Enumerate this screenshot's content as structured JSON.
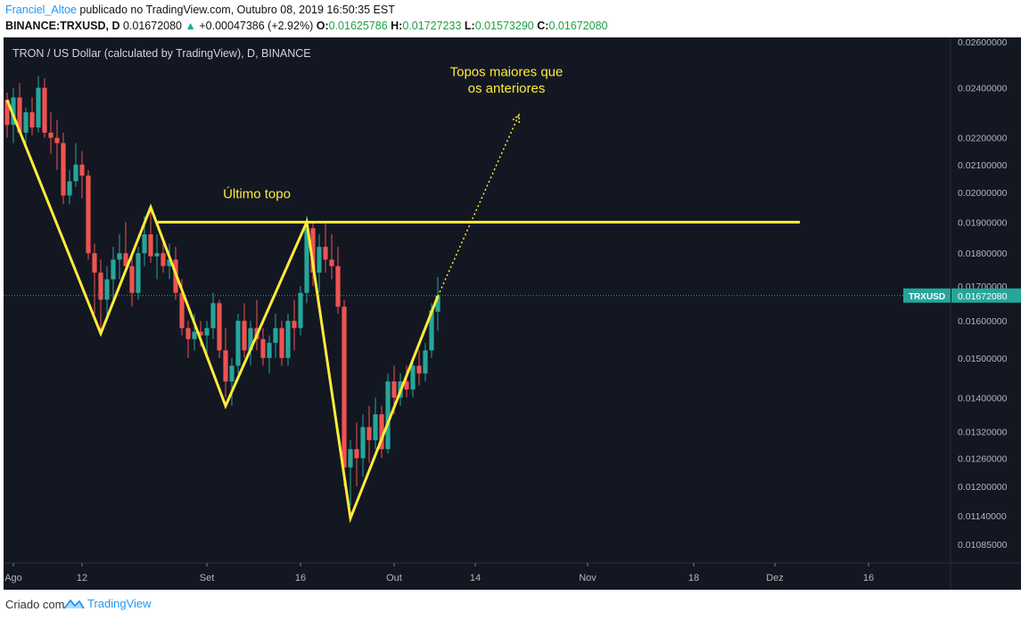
{
  "header": {
    "author": "Franciel_Altoe",
    "published_text": "publicado no TradingView.com, Outubro 08, 2019 16:50:35 EST",
    "symbol": "BINANCE:TRXUSD, D",
    "last": "0.01672080",
    "change_arrow": "▲",
    "change": "+0.00047386 (+2.92%)",
    "o_label": "O:",
    "o_value": "0.01625786",
    "h_label": "H:",
    "h_value": "0.01727233",
    "l_label": "L:",
    "l_value": "0.01573290",
    "c_label": "C:",
    "c_value": "0.01672080"
  },
  "footer": {
    "created_with": "Criado com",
    "brand": "TradingView",
    "logo_icon": "tradingview-logo-icon"
  },
  "colors": {
    "background": "#131722",
    "up": "#26a69a",
    "down": "#ef5350",
    "annotation": "#ffeb3b",
    "price_tag": "#26a69a"
  },
  "chart_data": {
    "type": "candlestick",
    "title": "TRON / US Dollar (calculated by TradingView), D, BINANCE",
    "yscale": "log",
    "ylim": [
      0.0105,
      0.0262
    ],
    "y_ticks": [
      "0.02600000",
      "0.02400000",
      "0.02200000",
      "0.02100000",
      "0.02000000",
      "0.01900000",
      "0.01800000",
      "0.01700000",
      "0.01600000",
      "0.01500000",
      "0.01400000",
      "0.01320000",
      "0.01260000",
      "0.01200000",
      "0.01140000",
      "0.01085000"
    ],
    "x_ticks": [
      {
        "label": "Ago",
        "date": "2019-08-01"
      },
      {
        "label": "12",
        "date": "2019-08-12"
      },
      {
        "label": "Set",
        "date": "2019-09-01"
      },
      {
        "label": "16",
        "date": "2019-09-16"
      },
      {
        "label": "Out",
        "date": "2019-10-01"
      },
      {
        "label": "14",
        "date": "2019-10-14"
      },
      {
        "label": "Nov",
        "date": "2019-11-01"
      },
      {
        "label": "18",
        "date": "2019-11-18"
      },
      {
        "label": "Dez",
        "date": "2019-12-01"
      },
      {
        "label": "16",
        "date": "2019-12-16"
      }
    ],
    "current_price": {
      "symbol": "TRXUSD",
      "value": "0.01672080"
    },
    "annotations": {
      "zigzag": [
        {
          "date": "2019-07-31",
          "price": 0.0235
        },
        {
          "date": "2019-08-15",
          "price": 0.01565
        },
        {
          "date": "2019-08-23",
          "price": 0.0195
        },
        {
          "date": "2019-09-04",
          "price": 0.0138
        },
        {
          "date": "2019-09-17",
          "price": 0.019
        },
        {
          "date": "2019-09-24",
          "price": 0.01135
        },
        {
          "date": "2019-10-08",
          "price": 0.0167
        }
      ],
      "horizontal_line": {
        "price": 0.019,
        "from": "2019-08-24",
        "to": "2019-12-05"
      },
      "dotted_arrow": {
        "from": {
          "date": "2019-10-08",
          "price": 0.0167
        },
        "to": {
          "date": "2019-10-21",
          "price": 0.0229
        }
      },
      "texts": [
        {
          "text": "Último topo",
          "date": "2019-09-09",
          "price": 0.0198
        },
        {
          "text": "Topos maiores que",
          "date": "2019-10-19",
          "price": 0.0245
        },
        {
          "text": "os anteriores",
          "date": "2019-10-19",
          "price": 0.0238
        }
      ]
    },
    "candles": [
      [
        "2019-07-31",
        0.0235,
        0.0238,
        0.022,
        0.0225
      ],
      [
        "2019-08-01",
        0.0225,
        0.024,
        0.0218,
        0.0236
      ],
      [
        "2019-08-02",
        0.0236,
        0.0242,
        0.0222,
        0.0222
      ],
      [
        "2019-08-03",
        0.0222,
        0.0232,
        0.0218,
        0.023
      ],
      [
        "2019-08-04",
        0.023,
        0.0236,
        0.0221,
        0.0224
      ],
      [
        "2019-08-05",
        0.0224,
        0.0245,
        0.0222,
        0.024
      ],
      [
        "2019-08-06",
        0.024,
        0.0244,
        0.022,
        0.0222
      ],
      [
        "2019-08-07",
        0.0222,
        0.023,
        0.0214,
        0.022
      ],
      [
        "2019-08-08",
        0.022,
        0.0227,
        0.0208,
        0.0218
      ],
      [
        "2019-08-09",
        0.0218,
        0.0222,
        0.0196,
        0.0199
      ],
      [
        "2019-08-10",
        0.0199,
        0.0208,
        0.0196,
        0.0204
      ],
      [
        "2019-08-11",
        0.0204,
        0.0218,
        0.0202,
        0.021
      ],
      [
        "2019-08-12",
        0.021,
        0.0215,
        0.0198,
        0.0206
      ],
      [
        "2019-08-13",
        0.0206,
        0.0208,
        0.0178,
        0.018
      ],
      [
        "2019-08-14",
        0.018,
        0.0183,
        0.0162,
        0.0174
      ],
      [
        "2019-08-15",
        0.0174,
        0.0178,
        0.0156,
        0.0166
      ],
      [
        "2019-08-16",
        0.0166,
        0.0176,
        0.016,
        0.0172
      ],
      [
        "2019-08-17",
        0.0172,
        0.0182,
        0.0166,
        0.0178
      ],
      [
        "2019-08-18",
        0.0178,
        0.0186,
        0.0172,
        0.018
      ],
      [
        "2019-08-19",
        0.018,
        0.019,
        0.0176,
        0.0176
      ],
      [
        "2019-08-20",
        0.0176,
        0.018,
        0.0164,
        0.0168
      ],
      [
        "2019-08-21",
        0.0168,
        0.0182,
        0.0166,
        0.018
      ],
      [
        "2019-08-22",
        0.018,
        0.0192,
        0.0176,
        0.0186
      ],
      [
        "2019-08-23",
        0.0186,
        0.0195,
        0.0177,
        0.0179
      ],
      [
        "2019-08-24",
        0.0179,
        0.0186,
        0.0172,
        0.018
      ],
      [
        "2019-08-25",
        0.018,
        0.0184,
        0.0174,
        0.0176
      ],
      [
        "2019-08-26",
        0.0176,
        0.0183,
        0.0172,
        0.0178
      ],
      [
        "2019-08-27",
        0.0178,
        0.0182,
        0.0166,
        0.0168
      ],
      [
        "2019-08-28",
        0.0168,
        0.0172,
        0.0156,
        0.0158
      ],
      [
        "2019-08-29",
        0.0158,
        0.016,
        0.015,
        0.0155
      ],
      [
        "2019-08-30",
        0.0155,
        0.0162,
        0.0152,
        0.0157
      ],
      [
        "2019-08-31",
        0.0157,
        0.016,
        0.0153,
        0.0156
      ],
      [
        "2019-09-01",
        0.0156,
        0.016,
        0.0151,
        0.0158
      ],
      [
        "2019-09-02",
        0.0158,
        0.0168,
        0.0155,
        0.0165
      ],
      [
        "2019-09-03",
        0.0165,
        0.0166,
        0.015,
        0.0152
      ],
      [
        "2019-09-04",
        0.0152,
        0.0158,
        0.014,
        0.0144
      ],
      [
        "2019-09-05",
        0.0144,
        0.015,
        0.0138,
        0.0148
      ],
      [
        "2019-09-06",
        0.0148,
        0.0162,
        0.0146,
        0.016
      ],
      [
        "2019-09-07",
        0.016,
        0.0165,
        0.015,
        0.0152
      ],
      [
        "2019-09-08",
        0.0152,
        0.016,
        0.0148,
        0.0158
      ],
      [
        "2019-09-09",
        0.0158,
        0.0166,
        0.0152,
        0.0155
      ],
      [
        "2019-09-10",
        0.0155,
        0.0158,
        0.0148,
        0.015
      ],
      [
        "2019-09-11",
        0.015,
        0.0156,
        0.0146,
        0.0154
      ],
      [
        "2019-09-12",
        0.0154,
        0.0162,
        0.015,
        0.0158
      ],
      [
        "2019-09-13",
        0.0158,
        0.016,
        0.0148,
        0.015
      ],
      [
        "2019-09-14",
        0.015,
        0.0162,
        0.0148,
        0.016
      ],
      [
        "2019-09-15",
        0.016,
        0.0166,
        0.0152,
        0.0158
      ],
      [
        "2019-09-16",
        0.0158,
        0.017,
        0.0156,
        0.0168
      ],
      [
        "2019-09-17",
        0.0168,
        0.0192,
        0.0165,
        0.0188
      ],
      [
        "2019-09-18",
        0.0188,
        0.019,
        0.017,
        0.0174
      ],
      [
        "2019-09-19",
        0.0174,
        0.0186,
        0.0168,
        0.0182
      ],
      [
        "2019-09-20",
        0.0182,
        0.019,
        0.0174,
        0.0178
      ],
      [
        "2019-09-21",
        0.0178,
        0.0186,
        0.0172,
        0.0176
      ],
      [
        "2019-09-22",
        0.0176,
        0.0182,
        0.0162,
        0.0164
      ],
      [
        "2019-09-23",
        0.0164,
        0.0166,
        0.012,
        0.0124
      ],
      [
        "2019-09-24",
        0.0124,
        0.013,
        0.0116,
        0.0128
      ],
      [
        "2019-09-25",
        0.0128,
        0.0134,
        0.012,
        0.0126
      ],
      [
        "2019-09-26",
        0.0126,
        0.0136,
        0.0122,
        0.0133
      ],
      [
        "2019-09-27",
        0.0133,
        0.0138,
        0.0125,
        0.013
      ],
      [
        "2019-09-28",
        0.013,
        0.014,
        0.0128,
        0.0136
      ],
      [
        "2019-09-29",
        0.0136,
        0.0138,
        0.0126,
        0.0128
      ],
      [
        "2019-09-30",
        0.0128,
        0.0146,
        0.0127,
        0.0144
      ],
      [
        "2019-10-01",
        0.0144,
        0.0148,
        0.0136,
        0.014
      ],
      [
        "2019-10-02",
        0.014,
        0.0146,
        0.0138,
        0.0144
      ],
      [
        "2019-10-03",
        0.0144,
        0.0148,
        0.014,
        0.0142
      ],
      [
        "2019-10-04",
        0.0142,
        0.015,
        0.014,
        0.0148
      ],
      [
        "2019-10-05",
        0.0148,
        0.0152,
        0.0143,
        0.0146
      ],
      [
        "2019-10-06",
        0.0146,
        0.0154,
        0.0144,
        0.0152
      ],
      [
        "2019-10-07",
        0.0152,
        0.0165,
        0.015,
        0.0163
      ],
      [
        "2019-10-08",
        0.01625786,
        0.01727233,
        0.0157329,
        0.0167208
      ]
    ]
  }
}
